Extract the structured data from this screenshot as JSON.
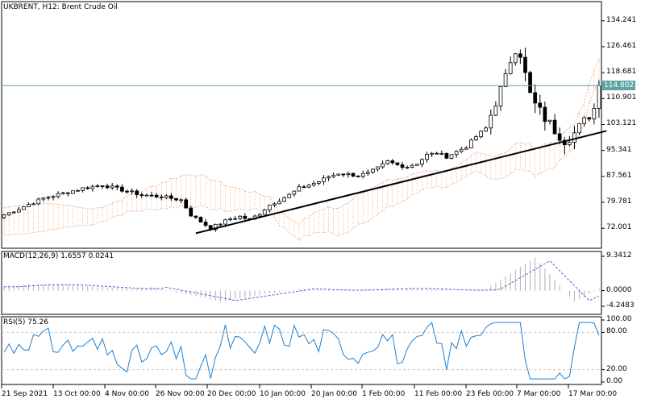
{
  "chart_data": [
    {
      "type": "candlestick",
      "title": "UKBRENT, H12:  Brent Crude Oil",
      "symbol": "UKBRENT",
      "timeframe": "H12",
      "ylim": [
        66.0,
        140.0
      ],
      "y_ticks": [
        "134.241",
        "126.461",
        "118.681",
        "110.901",
        "103.121",
        "95.341",
        "87.561",
        "79.781",
        "72.001"
      ],
      "y_tick_values": [
        134.241,
        126.461,
        118.681,
        110.901,
        103.121,
        95.341,
        87.561,
        79.781,
        72.001
      ],
      "current_price": "114.802",
      "current_price_value": 114.802,
      "bar_count": 122,
      "close_path": [
        [
          0,
          76.0
        ],
        [
          4,
          78.5
        ],
        [
          8,
          81.0
        ],
        [
          12,
          82.5
        ],
        [
          16,
          84.0
        ],
        [
          20,
          85.0
        ],
        [
          24,
          83.5
        ],
        [
          28,
          82.0
        ],
        [
          32,
          81.5
        ],
        [
          36,
          80.5
        ],
        [
          38,
          76.0
        ],
        [
          40,
          74.0
        ],
        [
          42,
          72.0
        ],
        [
          44,
          73.5
        ],
        [
          46,
          74.8
        ],
        [
          48,
          75.5
        ],
        [
          50,
          74.5
        ],
        [
          52,
          76.5
        ],
        [
          54,
          79.0
        ],
        [
          56,
          80.5
        ],
        [
          58,
          82.0
        ],
        [
          60,
          84.0
        ],
        [
          62,
          85.0
        ],
        [
          64,
          86.0
        ],
        [
          66,
          87.5
        ],
        [
          68,
          88.5
        ],
        [
          70,
          88.2
        ],
        [
          72,
          87.8
        ],
        [
          74,
          88.5
        ],
        [
          76,
          90.0
        ],
        [
          78,
          92.0
        ],
        [
          80,
          91.0
        ],
        [
          82,
          90.5
        ],
        [
          84,
          91.5
        ],
        [
          86,
          94.0
        ],
        [
          88,
          94.5
        ],
        [
          90,
          93.5
        ],
        [
          92,
          95.0
        ],
        [
          94,
          96.5
        ],
        [
          96,
          99.5
        ],
        [
          98,
          102.0
        ],
        [
          100,
          110.0
        ],
        [
          102,
          117.0
        ],
        [
          103,
          122.5
        ],
        [
          104,
          126.0
        ],
        [
          105,
          124.5
        ],
        [
          106,
          118.0
        ],
        [
          107,
          112.0
        ],
        [
          108,
          109.0
        ],
        [
          110,
          105.0
        ],
        [
          112,
          101.5
        ],
        [
          114,
          98.5
        ],
        [
          116,
          100.5
        ],
        [
          118,
          104.0
        ],
        [
          120,
          108.0
        ],
        [
          121,
          114.802
        ]
      ],
      "trendline": {
        "from": [
          39,
          70.5
        ],
        "to": [
          122,
          101.2
        ]
      }
    },
    {
      "type": "line",
      "title": "MACD(12,26,9) 1.6557 0.0241",
      "indicator": "MACD",
      "params": [
        12,
        26,
        9
      ],
      "main_value": "1.6557",
      "signal_value": "0.0241",
      "ylim": [
        -4.2483,
        9.3412
      ],
      "y_ticks": [
        "9.3412",
        "0.0000",
        "-4.2483"
      ],
      "y_tick_values": [
        9.3412,
        0.0,
        -4.2483
      ]
    },
    {
      "type": "line",
      "title": "RSI(5) 75.26",
      "indicator": "RSI",
      "params": [
        5
      ],
      "value": "75.26",
      "ylim": [
        0,
        100
      ],
      "y_ticks": [
        "100.00",
        "80.00",
        "20.00",
        "0.00"
      ],
      "y_tick_values": [
        100,
        80,
        20,
        0
      ],
      "levels": [
        80,
        20
      ]
    }
  ],
  "x_axis": {
    "labels": [
      "21 Sep 2021",
      "13 Oct 00:00",
      "4 Nov 00:00",
      "26 Nov 00:00",
      "20 Dec 00:00",
      "10 Jan 00:00",
      "20 Jan 00:00",
      "1 Feb 00:00",
      "11 Feb 00:00",
      "23 Feb 00:00",
      "7 Mar 00:00",
      "17 Mar 00:00"
    ]
  },
  "colors": {
    "price": "#000000",
    "price_line": "#5fa3a3",
    "cloud": "#e8a070",
    "macd_hist": "#b0b0b0",
    "macd_signal": "#6a5acd",
    "rsi": "#1e7fd0",
    "grid": "#c8c8c8",
    "frame": "#000000",
    "trendline": "#000000"
  }
}
